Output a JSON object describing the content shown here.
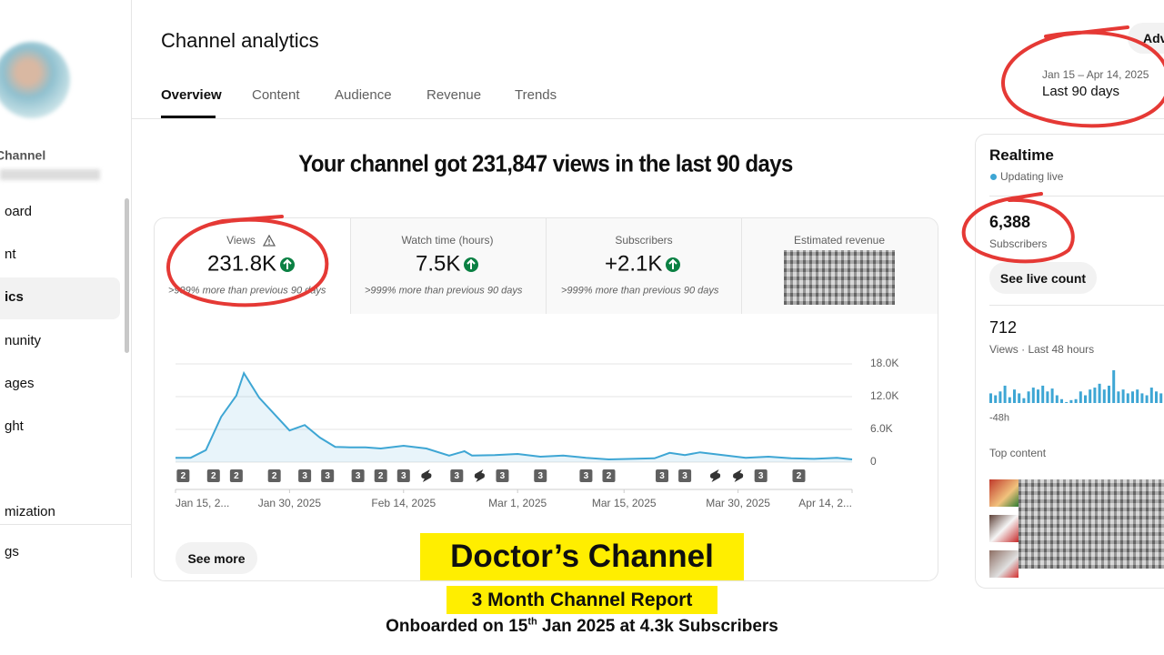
{
  "sidebar": {
    "channel_name": "Channel",
    "items": [
      "oard",
      "nt",
      "ics",
      "nunity",
      "ages",
      "ght",
      "mization",
      "gs"
    ]
  },
  "header": {
    "title": "Channel analytics",
    "tabs": [
      "Overview",
      "Content",
      "Audience",
      "Revenue",
      "Trends"
    ],
    "button": "Adv",
    "date_range": "Jan 15 – Apr 14, 2025",
    "period": "Last 90 days"
  },
  "headline": "Your channel got 231,847 views in the last 90 days",
  "metrics": [
    {
      "label": "Views",
      "value": "231.8K",
      "change": ">999% more than previous 90 days"
    },
    {
      "label": "Watch time (hours)",
      "value": "7.5K",
      "change": ">999% more than previous 90 days"
    },
    {
      "label": "Subscribers",
      "value": "+2.1K",
      "change": ">999% more than previous 90 days"
    },
    {
      "label": "Estimated revenue"
    }
  ],
  "views_chart": {
    "type": "line",
    "color": "#3ea6d4",
    "x": [
      0,
      2,
      4,
      6,
      8,
      9,
      11,
      13,
      15,
      17,
      19,
      21,
      23,
      25,
      27,
      30,
      33,
      36,
      38,
      39,
      42,
      45,
      48,
      51,
      54,
      57,
      60,
      63,
      65,
      67,
      69,
      72,
      75,
      78,
      81,
      84,
      87,
      89
    ],
    "values": [
      0.8,
      0.8,
      2.2,
      8.3,
      12.2,
      16.3,
      11.8,
      8.8,
      5.8,
      6.8,
      4.5,
      2.8,
      2.7,
      2.7,
      2.5,
      3.0,
      2.5,
      1.2,
      2.0,
      1.2,
      1.3,
      1.5,
      1.0,
      1.2,
      0.8,
      0.5,
      0.6,
      0.7,
      1.7,
      1.3,
      1.8,
      1.3,
      0.8,
      1.0,
      0.7,
      0.6,
      0.8,
      0.5
    ],
    "xlim": [
      0,
      89
    ],
    "xticks": [
      {
        "value": 0,
        "label": "Jan 15, 2..."
      },
      {
        "value": 15,
        "label": "Jan 30, 2025"
      },
      {
        "value": 30,
        "label": "Feb 14, 2025"
      },
      {
        "value": 45,
        "label": "Mar 1, 2025"
      },
      {
        "value": 59,
        "label": "Mar 15, 2025"
      },
      {
        "value": 74,
        "label": "Mar 30, 2025"
      },
      {
        "value": 89,
        "label": "Apr 14, 2..."
      }
    ],
    "ylim": [
      0,
      18
    ],
    "yticks": [
      0,
      {
        "value": 6,
        "label": "6.0K"
      },
      {
        "value": 12,
        "label": "12.0K"
      },
      {
        "value": 18,
        "label": "18.0K"
      }
    ],
    "grid": true,
    "markers": [
      {
        "day": 1,
        "label": 2
      },
      {
        "day": 5,
        "label": 2
      },
      {
        "day": 8,
        "label": 2
      },
      {
        "day": 13,
        "label": 2
      },
      {
        "day": 17,
        "label": 3
      },
      {
        "day": 20,
        "label": 3
      },
      {
        "day": 24,
        "label": 3
      },
      {
        "day": 27,
        "label": 2
      },
      {
        "day": 30,
        "label": 3
      },
      {
        "day": 33,
        "label": null
      },
      {
        "day": 37,
        "label": 3
      },
      {
        "day": 40,
        "label": null
      },
      {
        "day": 43,
        "label": 3
      },
      {
        "day": 48,
        "label": 3
      },
      {
        "day": 54,
        "label": 3
      },
      {
        "day": 57,
        "label": 2
      },
      {
        "day": 64,
        "label": 3
      },
      {
        "day": 67,
        "label": 3
      },
      {
        "day": 71,
        "label": null
      },
      {
        "day": 74,
        "label": null
      },
      {
        "day": 77,
        "label": 3
      },
      {
        "day": 82,
        "label": 2
      }
    ]
  },
  "see_more": "See more",
  "realtime": {
    "title": "Realtime",
    "status": "Updating live",
    "subscribers": "6,388",
    "subscribers_label": "Subscribers",
    "button": "See live count",
    "views": "712",
    "views_label": "Views · Last 48 hours",
    "axis_start": "-48h",
    "top_content": "Top content",
    "color": "#3ea6d4",
    "bars": [
      10,
      8,
      12,
      18,
      6,
      14,
      10,
      5,
      12,
      16,
      14,
      18,
      12,
      15,
      8,
      4,
      1,
      3,
      4,
      12,
      8,
      14,
      16,
      20,
      14,
      18,
      34,
      12,
      14,
      10,
      12,
      14,
      10,
      8,
      16,
      12,
      10,
      14
    ]
  },
  "overlay": {
    "title": "Doctor’s Channel",
    "subtitle": "3 Month Channel Report",
    "onboarded": [
      "Onboarded on 15",
      "th",
      " Jan 2025 at 4.3k Subscribers"
    ]
  }
}
